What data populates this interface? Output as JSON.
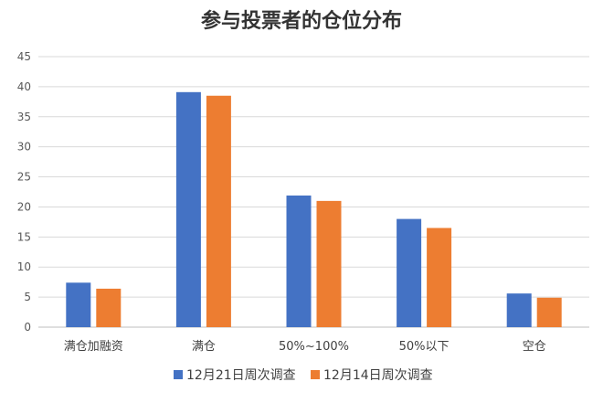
{
  "chart_data": {
    "type": "bar",
    "title": "参与投票者的仓位分布",
    "categories": [
      "满仓加融资",
      "满仓",
      "50%~100%",
      "50%以下",
      "空仓"
    ],
    "series": [
      {
        "name": "12月21日周次调查",
        "color": "#4472c4",
        "values": [
          7.4,
          39.1,
          21.9,
          18.0,
          5.6
        ]
      },
      {
        "name": "12月14日周次调查",
        "color": "#ed7d31",
        "values": [
          6.4,
          38.5,
          21.0,
          16.5,
          4.9
        ]
      }
    ],
    "ylim": [
      0,
      45
    ],
    "yticks": [
      0,
      5,
      10,
      15,
      20,
      25,
      30,
      35,
      40,
      45
    ],
    "grid": true,
    "legend_position": "bottom"
  }
}
